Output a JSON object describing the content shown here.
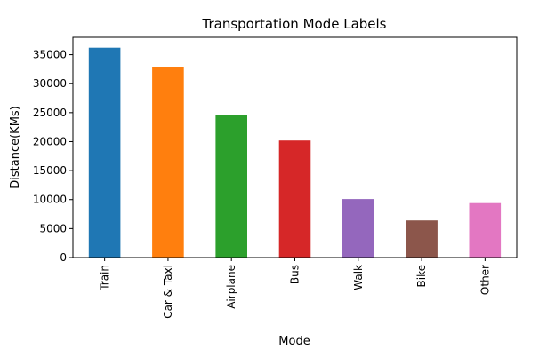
{
  "chart_data": {
    "type": "bar",
    "title": "Transportation Mode Labels",
    "xlabel": "Mode",
    "ylabel": "Distance(KMs)",
    "categories": [
      "Train",
      "Car & Taxi",
      "Airplane",
      "Bus",
      "Walk",
      "Bike",
      "Other"
    ],
    "values": [
      36200,
      32800,
      24600,
      20200,
      10100,
      6400,
      9400
    ],
    "colors": [
      "#1f77b4",
      "#ff7f0e",
      "#2ca02c",
      "#d62728",
      "#9467bd",
      "#8c564b",
      "#e377c2"
    ],
    "ylim": [
      0,
      38000
    ],
    "yticks": [
      0,
      5000,
      10000,
      15000,
      20000,
      25000,
      30000,
      35000
    ],
    "grid": false,
    "legend": "none"
  }
}
